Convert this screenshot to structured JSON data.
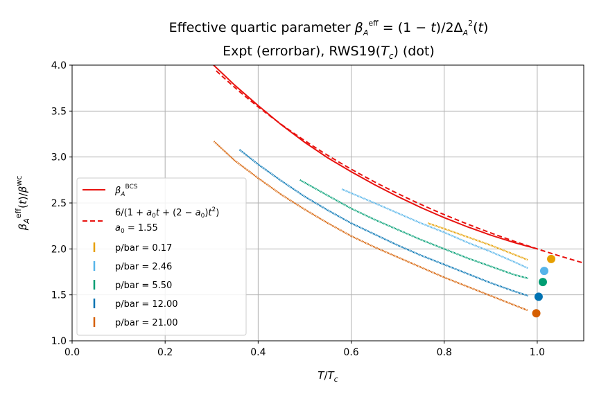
{
  "chart_data": {
    "type": "scatter",
    "title_line1": "Effective quartic parameter β_A^eff = (1 − t)/2Δ_A^2(t)",
    "title_line2": "Expt (errorbar), RWS19(T_c) (dot)",
    "xlabel": "T/T_c",
    "ylabel": "β_A^eff(t)/β^wc",
    "xlim": [
      0.0,
      1.1
    ],
    "ylim": [
      1.0,
      4.0
    ],
    "xticks": [
      "0.0",
      "0.2",
      "0.4",
      "0.6",
      "0.8",
      "1.0"
    ],
    "yticks": [
      "1.0",
      "1.5",
      "2.0",
      "2.5",
      "3.0",
      "3.5",
      "4.0"
    ],
    "grid": true,
    "legend_position": "lower-left",
    "legend": {
      "bcs": "β_A^BCS",
      "fit_line1": "6/(1 + a_0 t + (2 − a_0) t^2)",
      "fit_line2": "a_0 = 1.55"
    },
    "curves": [
      {
        "name": "β_A^BCS",
        "color": "#e8120f",
        "style": "solid",
        "x": [
          0.3,
          0.35,
          0.4,
          0.45,
          0.5,
          0.55,
          0.6,
          0.65,
          0.7,
          0.75,
          0.8,
          0.85,
          0.9,
          0.95,
          1.0
        ],
        "y": [
          4.02,
          3.78,
          3.56,
          3.35,
          3.16,
          2.99,
          2.84,
          2.7,
          2.57,
          2.45,
          2.34,
          2.24,
          2.15,
          2.07,
          2.0
        ]
      },
      {
        "name": "6/(1 + a_0 t + (2 − a_0) t^2)",
        "color": "#e8120f",
        "style": "dashed",
        "a0": 1.55,
        "x_range": [
          0.31,
          1.1
        ]
      }
    ],
    "series": [
      {
        "name": "p/bar = 0.17",
        "color": "#e69f00",
        "x": [
          0.765,
          0.8,
          0.85,
          0.9,
          0.95,
          0.98
        ],
        "y": [
          2.28,
          2.22,
          2.13,
          2.04,
          1.94,
          1.88
        ],
        "dot": [
          1.03,
          1.89
        ]
      },
      {
        "name": "p/bar = 2.46",
        "color": "#56b4e9",
        "x": [
          0.58,
          0.65,
          0.7,
          0.75,
          0.8,
          0.85,
          0.9,
          0.95,
          0.98
        ],
        "y": [
          2.65,
          2.5,
          2.39,
          2.28,
          2.18,
          2.07,
          1.97,
          1.86,
          1.79
        ],
        "dot": [
          1.015,
          1.76
        ]
      },
      {
        "name": "p/bar = 5.50",
        "color": "#009e73",
        "x": [
          0.49,
          0.55,
          0.6,
          0.65,
          0.7,
          0.75,
          0.8,
          0.85,
          0.9,
          0.95,
          0.98
        ],
        "y": [
          2.75,
          2.58,
          2.44,
          2.32,
          2.21,
          2.1,
          2.0,
          1.9,
          1.81,
          1.72,
          1.68
        ],
        "dot": [
          1.012,
          1.64
        ]
      },
      {
        "name": "p/bar = 12.00",
        "color": "#0072b2",
        "x": [
          0.36,
          0.4,
          0.45,
          0.5,
          0.55,
          0.6,
          0.65,
          0.7,
          0.75,
          0.8,
          0.85,
          0.9,
          0.95,
          0.98
        ],
        "y": [
          3.08,
          2.92,
          2.74,
          2.57,
          2.42,
          2.28,
          2.16,
          2.04,
          1.93,
          1.83,
          1.73,
          1.63,
          1.54,
          1.49
        ],
        "dot": [
          1.003,
          1.48
        ]
      },
      {
        "name": "p/bar = 21.00",
        "color": "#d55e00",
        "x": [
          0.305,
          0.35,
          0.4,
          0.45,
          0.5,
          0.55,
          0.6,
          0.65,
          0.7,
          0.75,
          0.8,
          0.85,
          0.9,
          0.95,
          0.98
        ],
        "y": [
          3.17,
          2.96,
          2.77,
          2.59,
          2.43,
          2.28,
          2.14,
          2.02,
          1.91,
          1.8,
          1.69,
          1.59,
          1.49,
          1.39,
          1.33
        ],
        "dot": [
          0.998,
          1.3
        ]
      }
    ]
  }
}
